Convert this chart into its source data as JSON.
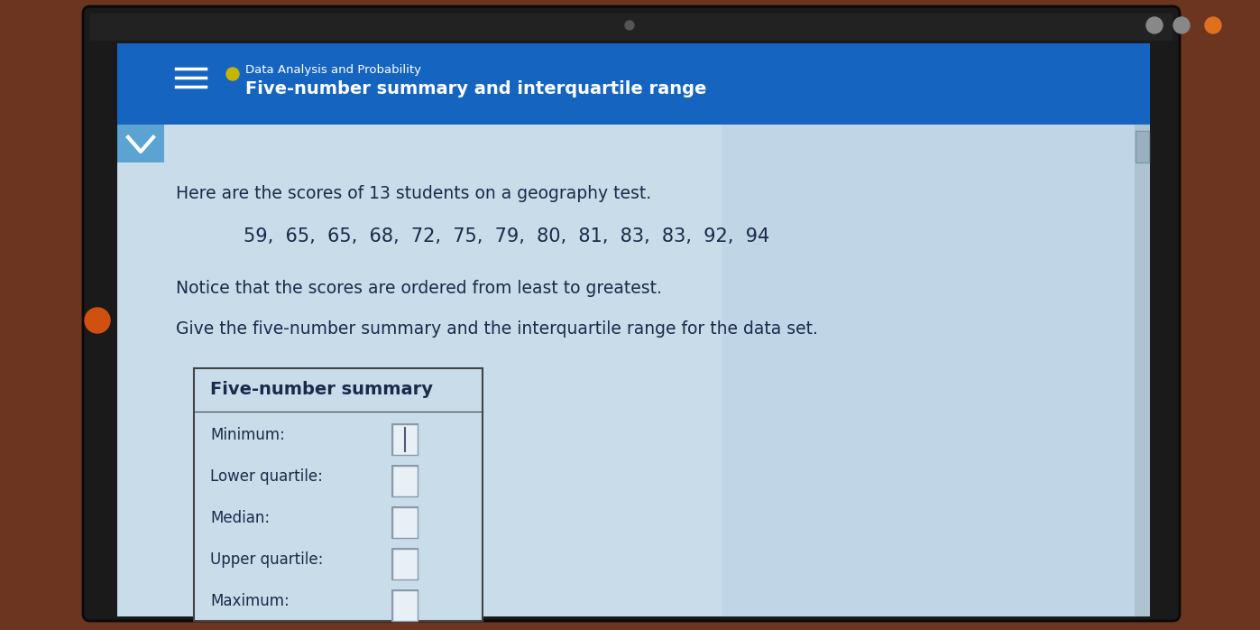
{
  "header_bg_color": "#1565c0",
  "header_text_color": "#ffffff",
  "dot_color": "#c8b400",
  "breadcrumb_text": "Data Analysis and Probability",
  "title_text": "Five-number summary and interquartile range",
  "body_bg_color": "#c8dcea",
  "chevron_bg_color": "#5ba3d0",
  "intro_text": "Here are the scores of 13 students on a geography test.",
  "scores_text": "59,  65,  65,  68,  72,  75,  79,  80,  81,  83,  83,  92,  94",
  "notice_text": "Notice that the scores are ordered from least to greatest.",
  "give_text": "Give the five-number summary and the interquartile range for the data set.",
  "box_title": "Five-number summary",
  "box_bg_color": "#c8dcea",
  "box_border_color": "#444444",
  "labels": [
    "Minimum:",
    "Lower quartile:",
    "Median:",
    "Upper quartile:",
    "Maximum:"
  ],
  "outer_bg_color": "#6b3520",
  "bezel_color": "#1a1a1a",
  "screen_bg_color": "#c8dcea",
  "screen_bg_right": "#b0c8dc",
  "hamburger_color": "#ffffff",
  "input_box_color": "#e8f0f5",
  "input_box_border": "#8899aa",
  "text_color": "#1a2a4a",
  "scrollbar_color": "#9ab0c0",
  "camera_color": "#555555",
  "circle1_color": "#888888",
  "circle2_color": "#888888",
  "circle3_color": "#e07020",
  "top_bar_color": "#5a3010"
}
